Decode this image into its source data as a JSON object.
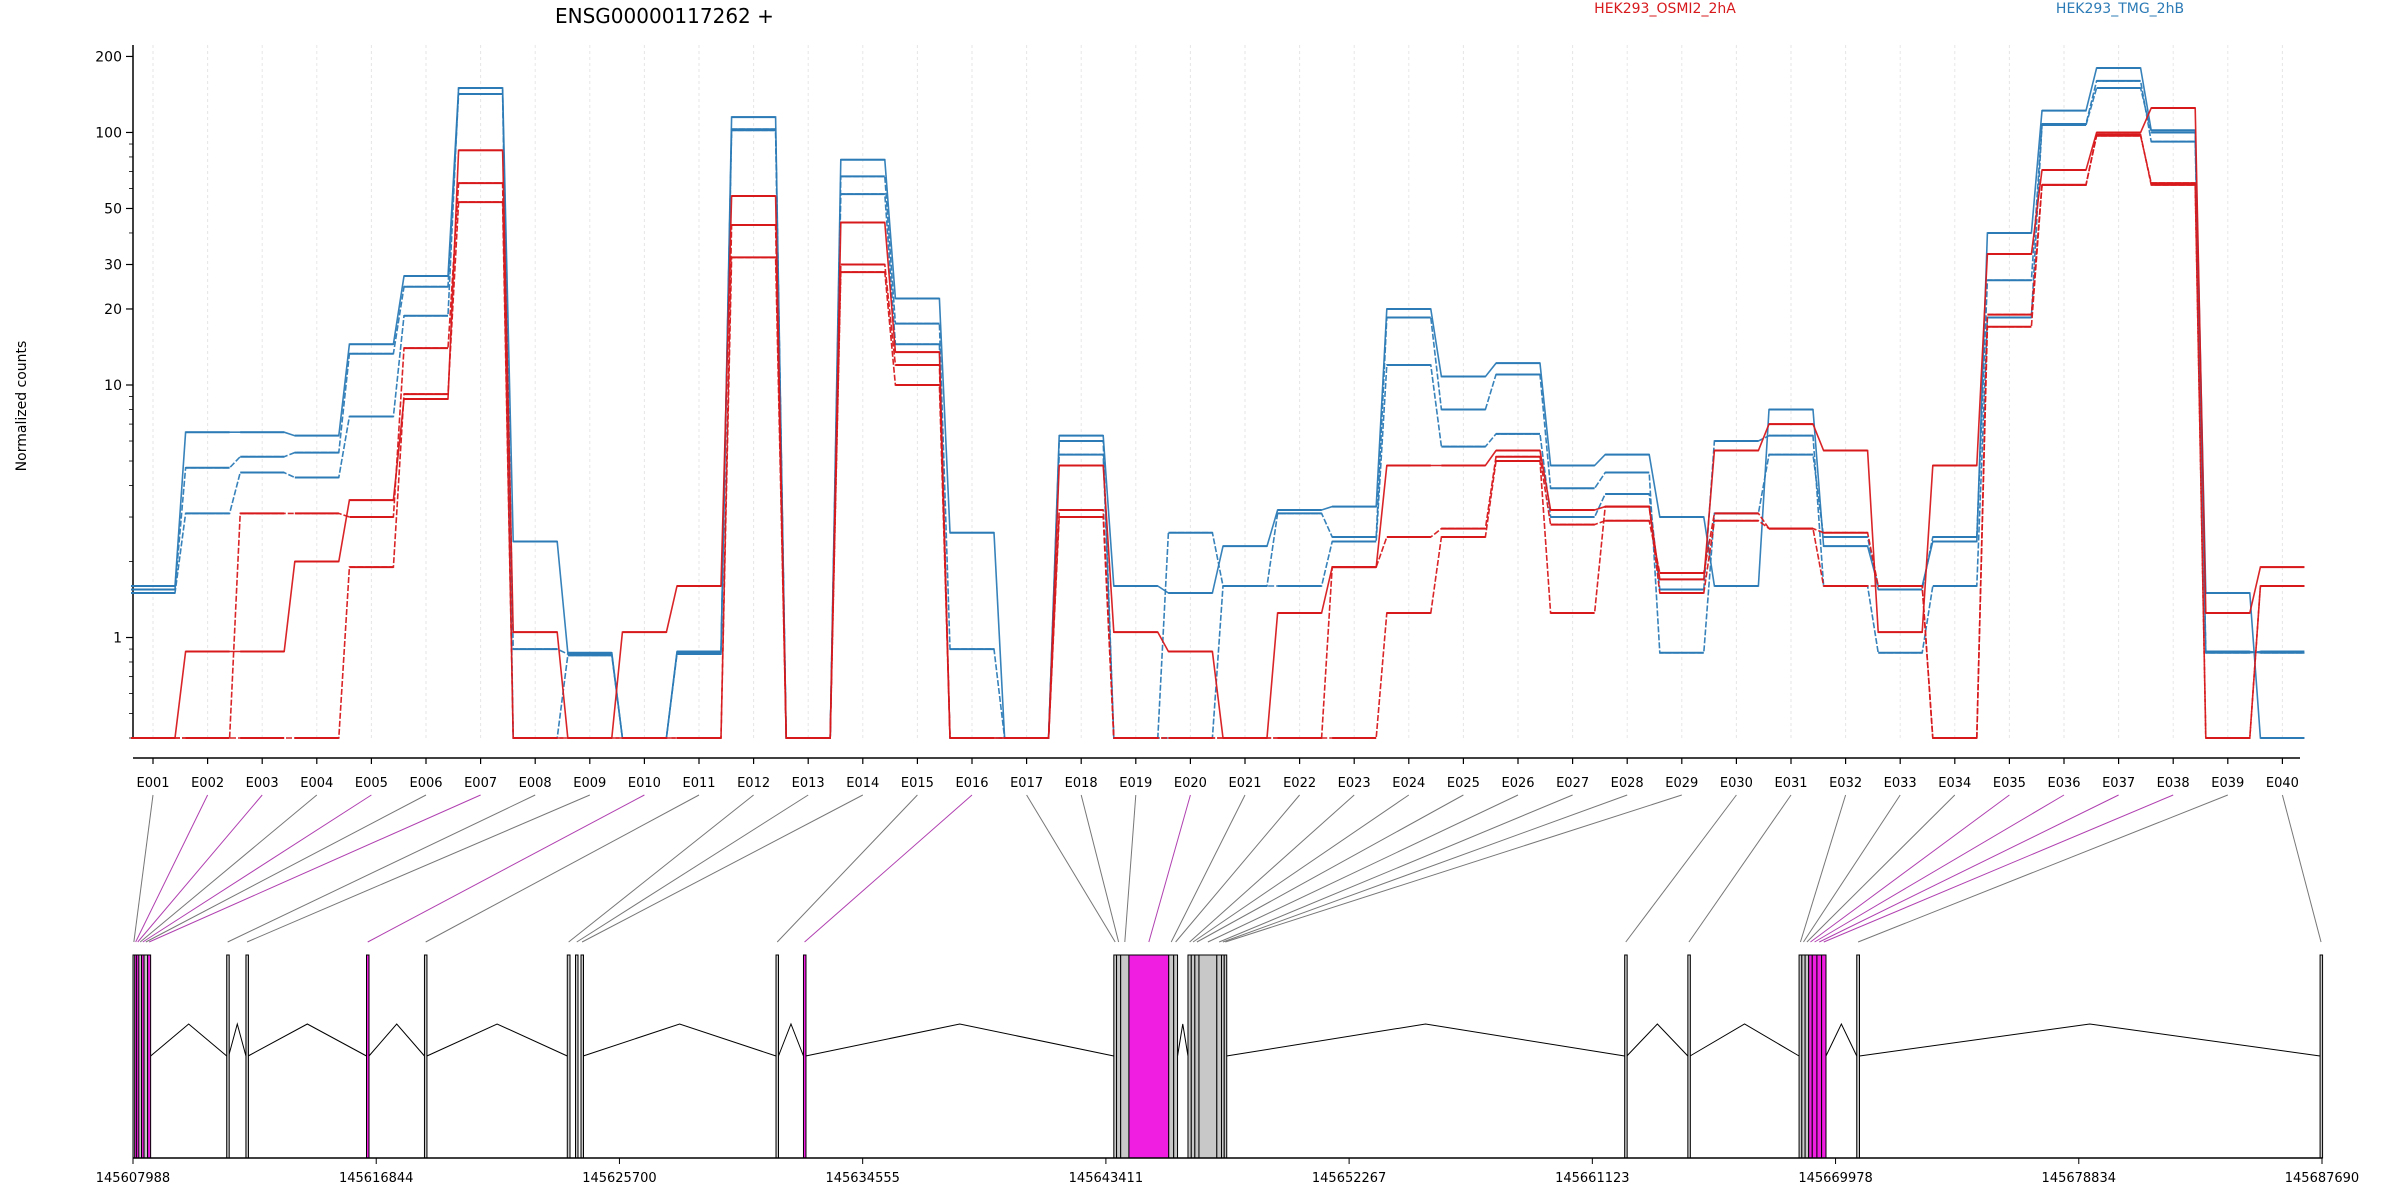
{
  "chart_data": {
    "type": "line",
    "title": "ENSG00000117262 +",
    "ylabel": "Normalized counts",
    "xlabel": "",
    "y_scale": "log",
    "ylim": [
      0.4,
      220
    ],
    "y_ticks": [
      "200",
      "100",
      "50",
      "30",
      "20",
      "10",
      "1"
    ],
    "y_tick_values": [
      200,
      100,
      50,
      30,
      20,
      10,
      1
    ],
    "grid": "vertical dashed at exon positions",
    "legend_placement": "top",
    "categories": [
      "E001",
      "E002",
      "E003",
      "E004",
      "E005",
      "E006",
      "E007",
      "E008",
      "E009",
      "E010",
      "E011",
      "E012",
      "E013",
      "E014",
      "E015",
      "E016",
      "E017",
      "E018",
      "E019",
      "E020",
      "E021",
      "E022",
      "E023",
      "E024",
      "E025",
      "E026",
      "E027",
      "E028",
      "E029",
      "E030",
      "E031",
      "E032",
      "E033",
      "E034",
      "E035",
      "E036",
      "E037",
      "E038",
      "E039",
      "E040"
    ],
    "legend": [
      {
        "name": "HEK293_OSMI2_2hA",
        "color": "#d7191c"
      },
      {
        "name": "HEK293_TMG_2hB",
        "color": "#2c7bb6"
      }
    ],
    "series": [
      {
        "name": "",
        "group": "blue",
        "color": "#2c7bb6",
        "values": [
          1.6,
          6.5,
          6.5,
          6.3,
          14.5,
          27,
          150,
          2.4,
          0.87,
          0.4,
          0.88,
          115,
          0.4,
          78,
          22,
          2.6,
          0.4,
          6.3,
          1.6,
          1.5,
          2.3,
          3.2,
          3.3,
          20,
          10.8,
          12.2,
          4.8,
          5.3,
          3.0,
          1.6,
          8.0,
          2.3,
          1.6,
          2.4,
          40,
          122,
          180,
          102,
          1.5,
          0.4
        ]
      },
      {
        "name": "",
        "group": "blue",
        "color": "#2c7bb6",
        "values": [
          1.55,
          4.7,
          5.2,
          5.4,
          13.3,
          24.5,
          142,
          0.9,
          0.86,
          0.4,
          0.87,
          102,
          0.4,
          67,
          17.5,
          0.9,
          0.4,
          6.0,
          0.4,
          2.6,
          1.6,
          3.1,
          2.5,
          18.5,
          8.0,
          11,
          3.9,
          4.5,
          0.87,
          3.1,
          5.3,
          2.5,
          1.55,
          2.5,
          26,
          108,
          160,
          92,
          0.88,
          0.87
        ]
      },
      {
        "name": "",
        "group": "blue",
        "color": "#2c7bb6",
        "values": [
          1.5,
          3.1,
          4.5,
          4.3,
          7.5,
          18.8,
          150,
          0.4,
          0.85,
          0.4,
          0.86,
          103,
          0.4,
          57,
          14.5,
          0.4,
          0.4,
          5.3,
          0.4,
          0.4,
          1.6,
          1.6,
          2.4,
          12,
          5.7,
          6.4,
          3.0,
          3.7,
          1.55,
          6.0,
          6.3,
          1.6,
          0.87,
          1.6,
          18.5,
          107,
          150,
          100,
          0.87,
          0.88
        ]
      },
      {
        "name": "",
        "group": "red",
        "color": "#d7191c",
        "values": [
          0.4,
          0.88,
          0.88,
          2.0,
          3.5,
          8.8,
          85,
          1.05,
          0.4,
          1.05,
          1.6,
          56,
          0.4,
          44,
          13.5,
          0.4,
          0.4,
          4.8,
          1.05,
          0.88,
          0.4,
          1.25,
          1.9,
          4.8,
          4.8,
          5.5,
          3.2,
          3.3,
          1.7,
          5.5,
          7.0,
          5.5,
          1.05,
          4.8,
          33,
          71,
          100,
          125,
          1.25,
          1.9
        ]
      },
      {
        "name": "",
        "group": "red",
        "color": "#d7191c",
        "values": [
          0.4,
          0.4,
          3.1,
          3.1,
          3.0,
          14,
          63,
          0.4,
          0.4,
          0.4,
          0.4,
          43,
          0.4,
          30,
          12,
          0.4,
          0.4,
          3.2,
          0.4,
          0.4,
          0.4,
          0.4,
          1.9,
          2.5,
          2.7,
          5.2,
          2.8,
          2.9,
          1.8,
          3.1,
          2.7,
          2.6,
          1.6,
          0.4,
          19,
          62,
          98,
          62,
          0.4,
          1.6
        ]
      },
      {
        "name": "",
        "group": "red",
        "color": "#d7191c",
        "values": [
          0.4,
          0.4,
          0.4,
          0.4,
          1.9,
          9.2,
          53,
          0.4,
          0.4,
          0.4,
          0.4,
          32,
          0.4,
          28,
          10,
          0.4,
          0.4,
          3.0,
          0.4,
          0.4,
          0.4,
          0.4,
          0.4,
          1.25,
          2.5,
          5.0,
          1.25,
          3.3,
          1.5,
          2.9,
          2.7,
          1.6,
          1.6,
          0.4,
          17,
          62,
          97,
          63,
          0.4,
          1.6
        ]
      }
    ],
    "genomic_axis": {
      "tick_labels": [
        "145607988",
        "145616844",
        "145625700",
        "145634555",
        "145643411",
        "145652267",
        "145661123",
        "145669978",
        "145678834",
        "145687690"
      ],
      "start": 145607988,
      "end": 145687690
    },
    "exon_model": {
      "exons": [
        {
          "id": "E001",
          "start": 145607988,
          "end": 145608050,
          "highlight": false
        },
        {
          "id": "E002",
          "start": 145608050,
          "end": 145608120,
          "highlight": true
        },
        {
          "id": "E003",
          "start": 145608120,
          "end": 145608200,
          "highlight": true
        },
        {
          "id": "E004",
          "start": 145608200,
          "end": 145608300,
          "highlight": false
        },
        {
          "id": "E005",
          "start": 145608300,
          "end": 145608390,
          "highlight": true
        },
        {
          "id": "E006",
          "start": 145608390,
          "end": 145608520,
          "highlight": false
        },
        {
          "id": "E007",
          "start": 145608520,
          "end": 145608630,
          "highlight": true
        },
        {
          "id": "E008",
          "start": 145611400,
          "end": 145611470,
          "highlight": false
        },
        {
          "id": "E009",
          "start": 145612100,
          "end": 145612180,
          "highlight": false
        },
        {
          "id": "E010",
          "start": 145616490,
          "end": 145616580,
          "highlight": true
        },
        {
          "id": "E011",
          "start": 145618600,
          "end": 145618690,
          "highlight": false
        },
        {
          "id": "E012",
          "start": 145623800,
          "end": 145623900,
          "highlight": false
        },
        {
          "id": "E013",
          "start": 145624100,
          "end": 145624190,
          "highlight": false
        },
        {
          "id": "E014",
          "start": 145624300,
          "end": 145624380,
          "highlight": false
        },
        {
          "id": "E015",
          "start": 145631400,
          "end": 145631490,
          "highlight": false
        },
        {
          "id": "E016",
          "start": 145632400,
          "end": 145632480,
          "highlight": true
        },
        {
          "id": "E017",
          "start": 145643700,
          "end": 145643800,
          "highlight": false
        },
        {
          "id": "E018",
          "start": 145643800,
          "end": 145643950,
          "highlight": false
        },
        {
          "id": "E019",
          "start": 145643950,
          "end": 145644250,
          "highlight": false
        },
        {
          "id": "E020",
          "start": 145644250,
          "end": 145645700,
          "highlight": true
        },
        {
          "id": "E021",
          "start": 145645700,
          "end": 145645880,
          "highlight": false
        },
        {
          "id": "E022",
          "start": 145645880,
          "end": 145646020,
          "highlight": false
        },
        {
          "id": "E023",
          "start": 145646400,
          "end": 145646520,
          "highlight": false
        },
        {
          "id": "E024",
          "start": 145646520,
          "end": 145646650,
          "highlight": false
        },
        {
          "id": "E025",
          "start": 145646650,
          "end": 145646800,
          "highlight": false
        },
        {
          "id": "E026",
          "start": 145646800,
          "end": 145647450,
          "highlight": false
        },
        {
          "id": "E027",
          "start": 145647450,
          "end": 145647620,
          "highlight": false
        },
        {
          "id": "E028",
          "start": 145647620,
          "end": 145647720,
          "highlight": false
        },
        {
          "id": "E029",
          "start": 145647720,
          "end": 145647800,
          "highlight": false
        },
        {
          "id": "E030",
          "start": 145662300,
          "end": 145662380,
          "highlight": false
        },
        {
          "id": "E031",
          "start": 145664600,
          "end": 145664680,
          "highlight": false
        },
        {
          "id": "E032",
          "start": 145668650,
          "end": 145668750,
          "highlight": false
        },
        {
          "id": "E033",
          "start": 145668750,
          "end": 145668870,
          "highlight": false
        },
        {
          "id": "E034",
          "start": 145668870,
          "end": 145669000,
          "highlight": false
        },
        {
          "id": "E035",
          "start": 145669000,
          "end": 145669130,
          "highlight": true
        },
        {
          "id": "E036",
          "start": 145669130,
          "end": 145669300,
          "highlight": true
        },
        {
          "id": "E037",
          "start": 145669300,
          "end": 145669470,
          "highlight": true
        },
        {
          "id": "E038",
          "start": 145669470,
          "end": 145669630,
          "highlight": true
        },
        {
          "id": "E039",
          "start": 145670750,
          "end": 145670850,
          "highlight": false
        },
        {
          "id": "E040",
          "start": 145687620,
          "end": 145687690,
          "highlight": false
        }
      ]
    }
  }
}
